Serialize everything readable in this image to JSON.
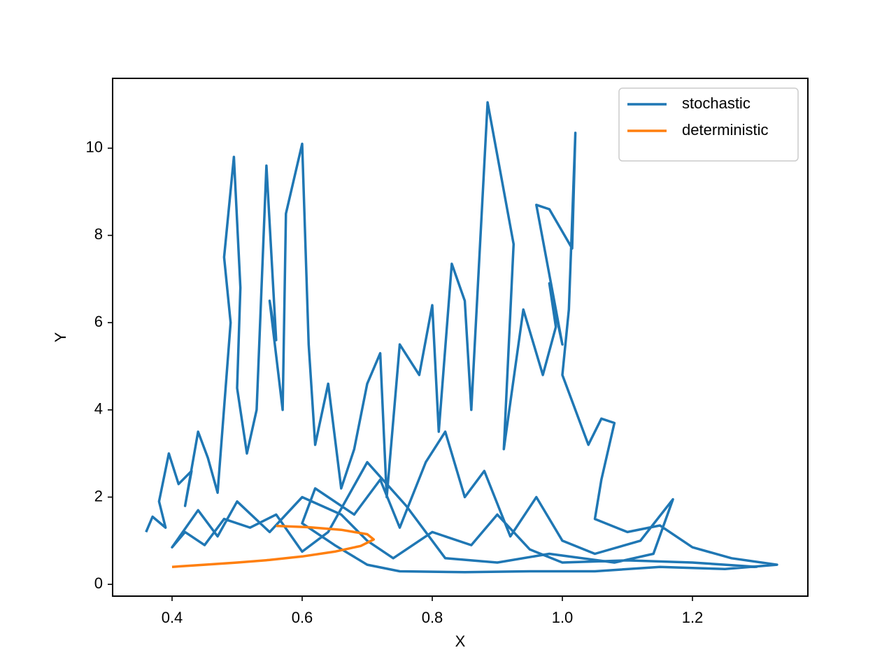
{
  "chart_data": {
    "type": "line",
    "xlabel": "X",
    "ylabel": "Y",
    "xlim": [
      0.3086,
      1.3774
    ],
    "ylim": [
      -0.27,
      11.6
    ],
    "xticks": [
      0.4,
      0.6,
      0.8,
      1.0,
      1.2
    ],
    "yticks": [
      0,
      2,
      4,
      6,
      8,
      10
    ],
    "xtick_labels": [
      "0.4",
      "0.6",
      "0.8",
      "1.0",
      "1.2"
    ],
    "grid": false,
    "legend": "upper right",
    "series": [
      {
        "name": "stochastic",
        "color": "#1f77b4",
        "x": [
          0.36,
          0.37,
          0.39,
          0.38,
          0.395,
          0.41,
          0.43,
          0.42,
          0.44,
          0.455,
          0.47,
          0.49,
          0.48,
          0.495,
          0.505,
          0.5,
          0.515,
          0.53,
          0.545,
          0.56,
          0.55,
          0.57,
          0.575,
          0.6,
          0.61,
          0.62,
          0.64,
          0.66,
          0.68,
          0.7,
          0.72,
          0.73,
          0.75,
          0.78,
          0.8,
          0.81,
          0.83,
          0.85,
          0.86,
          0.885,
          0.925,
          0.91,
          0.94,
          0.97,
          0.99,
          0.98,
          1.0,
          0.96,
          0.98,
          1.015,
          1.02,
          1.01,
          1.0,
          1.04,
          1.06,
          1.08,
          1.06,
          1.05,
          1.1,
          1.15,
          1.2,
          1.26,
          1.33,
          1.25,
          1.15,
          1.05,
          0.95,
          0.85,
          0.75,
          0.7,
          0.65,
          0.6,
          0.62,
          0.68,
          0.72,
          0.75,
          0.79,
          0.82,
          0.85,
          0.88,
          0.92,
          0.96,
          1.0,
          1.05,
          1.12,
          1.17,
          1.14,
          1.08,
          0.98,
          0.9,
          0.82,
          0.76,
          0.7,
          0.64,
          0.6,
          0.56,
          0.52,
          0.48,
          0.45,
          0.42,
          0.4,
          0.44,
          0.47,
          0.5,
          0.55,
          0.6,
          0.66,
          0.7,
          0.74,
          0.8,
          0.86,
          0.9,
          0.95,
          1.0,
          1.1,
          1.2,
          1.3
        ],
        "values": [
          1.2,
          1.55,
          1.3,
          1.9,
          3.0,
          2.3,
          2.6,
          1.8,
          3.5,
          2.9,
          2.1,
          6.0,
          7.5,
          9.8,
          6.8,
          4.5,
          3.0,
          4.0,
          9.6,
          5.6,
          6.5,
          4.0,
          8.5,
          10.1,
          5.5,
          3.2,
          4.6,
          2.2,
          3.1,
          4.6,
          5.3,
          2.0,
          5.5,
          4.8,
          6.4,
          3.5,
          7.35,
          6.5,
          4.0,
          11.05,
          7.8,
          3.1,
          6.3,
          4.8,
          5.9,
          6.9,
          5.5,
          8.7,
          8.6,
          7.7,
          10.35,
          6.3,
          4.8,
          3.2,
          3.8,
          3.7,
          2.4,
          1.5,
          1.2,
          1.35,
          0.85,
          0.6,
          0.45,
          0.35,
          0.4,
          0.3,
          0.3,
          0.28,
          0.3,
          0.45,
          0.9,
          1.4,
          2.2,
          1.6,
          2.4,
          1.3,
          2.8,
          3.5,
          2.0,
          2.6,
          1.1,
          2.0,
          1.0,
          0.7,
          1.0,
          1.95,
          0.7,
          0.5,
          0.7,
          0.5,
          0.6,
          1.8,
          2.8,
          1.2,
          0.75,
          1.6,
          1.3,
          1.5,
          0.9,
          1.2,
          0.85,
          1.7,
          1.1,
          1.9,
          1.2,
          2.0,
          1.6,
          1.0,
          0.6,
          1.2,
          0.9,
          1.6,
          0.8,
          0.5,
          0.55,
          0.5,
          0.4
        ]
      },
      {
        "name": "deterministic",
        "color": "#ff7f0e",
        "x": [
          0.4,
          0.45,
          0.5,
          0.55,
          0.6,
          0.65,
          0.69,
          0.71,
          0.7,
          0.66,
          0.61,
          0.56
        ],
        "values": [
          0.4,
          0.45,
          0.5,
          0.56,
          0.64,
          0.75,
          0.88,
          1.03,
          1.15,
          1.25,
          1.31,
          1.34
        ]
      }
    ]
  }
}
